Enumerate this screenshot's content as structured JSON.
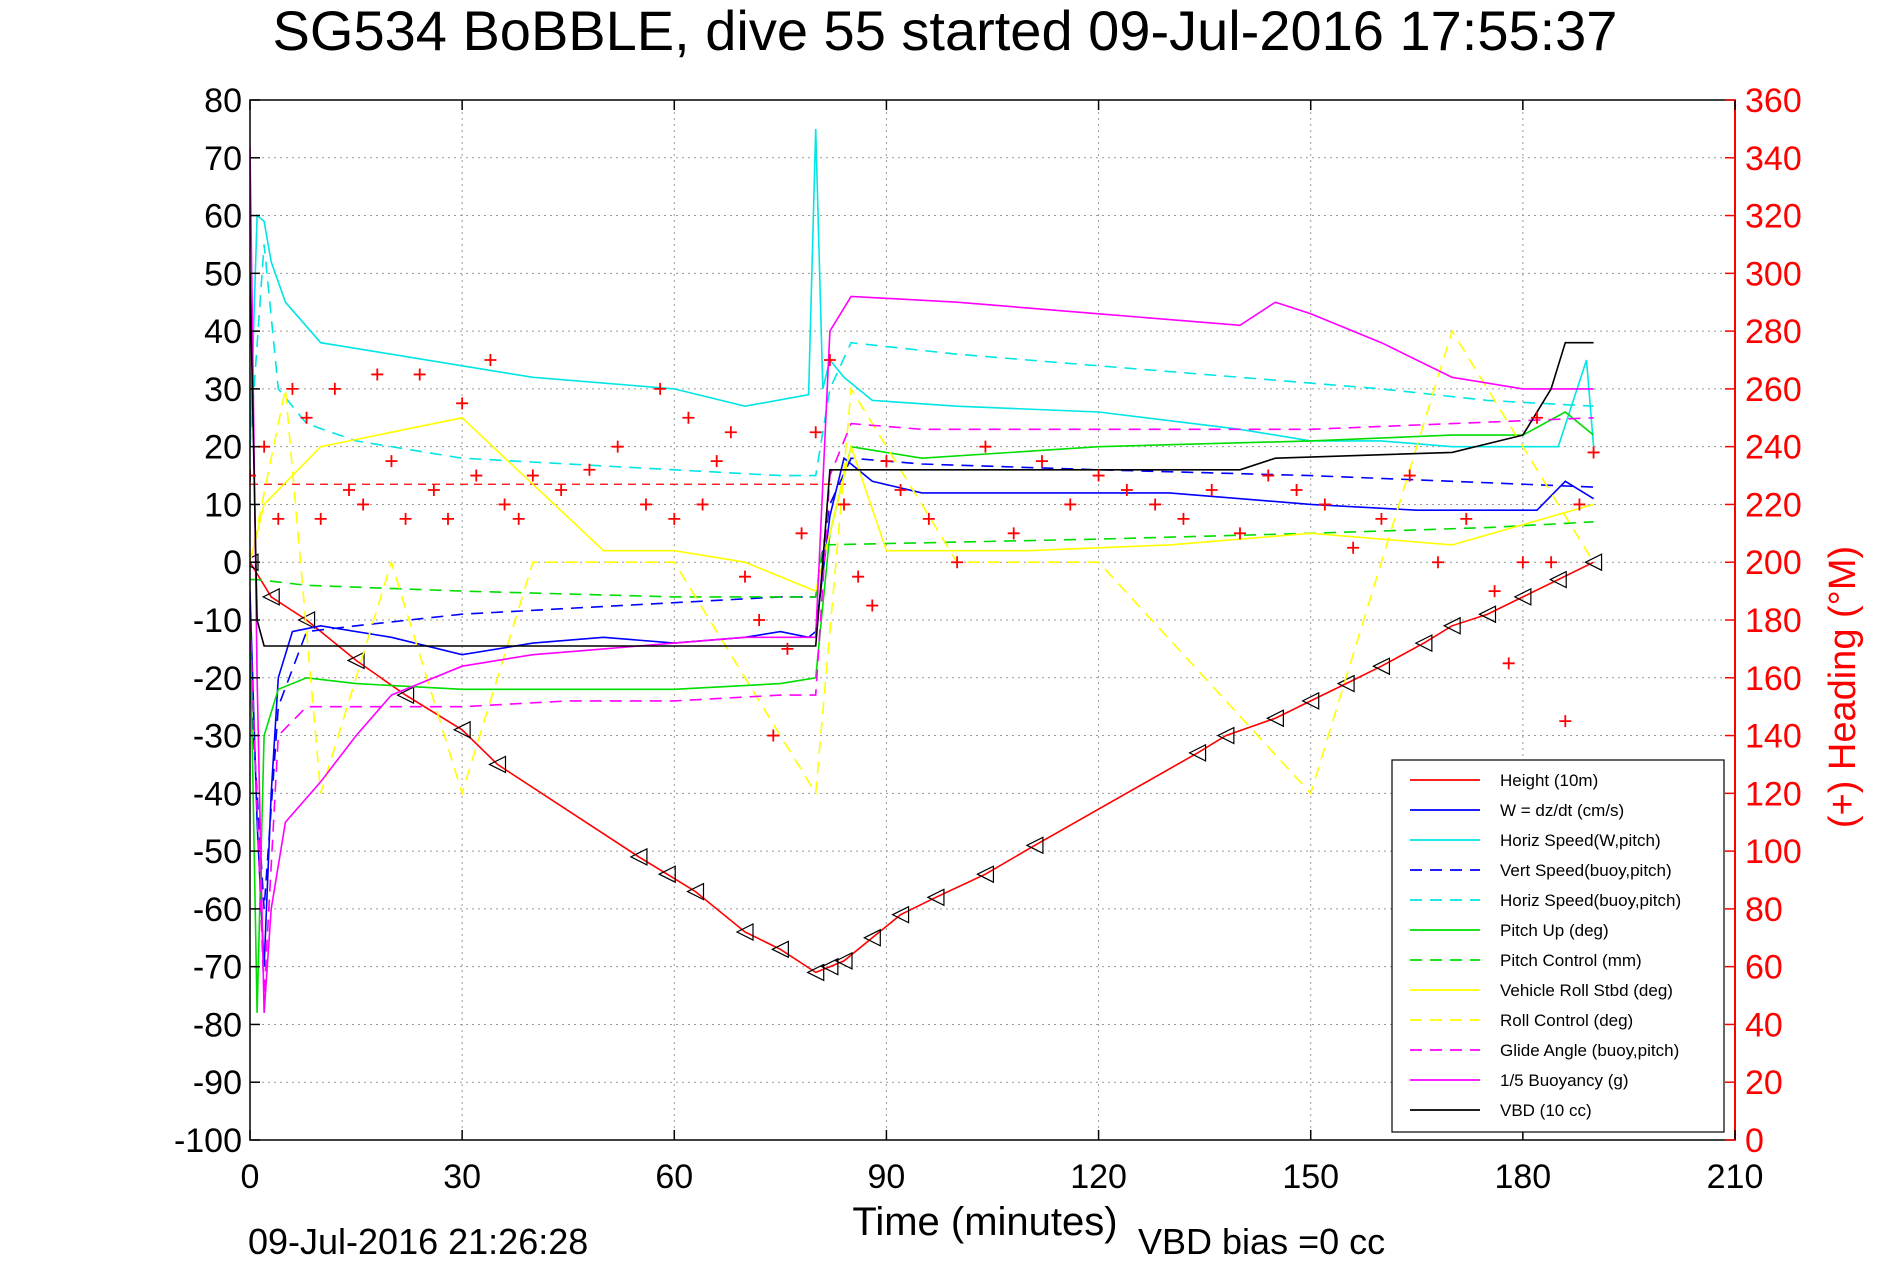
{
  "chart_data": {
    "type": "line",
    "title": "SG534 BoBBLE, dive 55 started 09-Jul-2016 17:55:37",
    "xlabel": "Time (minutes)",
    "ylabel": "",
    "y2label": "(+) Heading (°M)",
    "footer_left": "09-Jul-2016 21:26:28",
    "footer_right": "VBD bias =0 cc",
    "xlim": [
      0,
      210
    ],
    "ylim": [
      -100,
      80
    ],
    "y2lim": [
      0,
      360
    ],
    "xticks": [
      0,
      30,
      60,
      90,
      120,
      150,
      180,
      210
    ],
    "yticks": [
      80,
      70,
      60,
      50,
      40,
      30,
      20,
      10,
      0,
      -10,
      -20,
      -30,
      -40,
      -50,
      -60,
      -70,
      -80,
      -90,
      -100
    ],
    "y2ticks": [
      360,
      340,
      320,
      300,
      280,
      260,
      240,
      220,
      200,
      180,
      160,
      140,
      120,
      100,
      80,
      60,
      40,
      20,
      0
    ],
    "grid": true,
    "legend_position": "bottom-right",
    "series": [
      {
        "name": "Height (10m)",
        "color": "#ff0000",
        "dash": "solid",
        "marker": "triangle",
        "x": [
          0,
          3,
          8,
          15,
          22,
          30,
          35,
          55,
          59,
          63,
          70,
          75,
          80,
          82,
          84,
          88,
          92,
          97,
          104,
          111,
          134,
          138,
          145,
          150,
          155,
          160,
          166,
          170,
          175,
          180,
          185,
          190
        ],
        "y": [
          0,
          -6,
          -10,
          -17,
          -23,
          -29,
          -35,
          -51,
          -54,
          -57,
          -64,
          -67,
          -71,
          -70,
          -69,
          -65,
          -61,
          -58,
          -54,
          -49,
          -33,
          -30,
          -27,
          -24,
          -21,
          -18,
          -14,
          -11,
          -9,
          -6,
          -3,
          0
        ]
      },
      {
        "name": "W = dz/dt (cm/s)",
        "color": "#0000ff",
        "dash": "solid",
        "x": [
          0,
          1,
          2,
          3,
          4,
          6,
          10,
          20,
          30,
          40,
          50,
          60,
          70,
          75,
          79,
          80,
          82,
          84,
          88,
          95,
          110,
          130,
          150,
          165,
          175,
          182,
          186,
          190
        ],
        "y": [
          -5,
          -45,
          -70,
          -40,
          -20,
          -12,
          -11,
          -13,
          -16,
          -14,
          -13,
          -14,
          -13,
          -12,
          -13,
          -12,
          8,
          18,
          14,
          12,
          12,
          12,
          10,
          9,
          9,
          9,
          14,
          11
        ]
      },
      {
        "name": "Horiz Speed(W,pitch)",
        "color": "#00e5e5",
        "dash": "solid",
        "x": [
          0,
          1,
          2,
          3,
          5,
          10,
          20,
          30,
          40,
          50,
          60,
          70,
          79,
          80,
          81,
          82,
          84,
          88,
          100,
          120,
          140,
          150,
          160,
          170,
          180,
          185,
          189,
          190
        ],
        "y": [
          20,
          60,
          59,
          52,
          45,
          38,
          36,
          34,
          32,
          31,
          30,
          27,
          29,
          75,
          30,
          35,
          32,
          28,
          27,
          26,
          23,
          21,
          21,
          20,
          20,
          20,
          35,
          20
        ]
      },
      {
        "name": "Vert Speed(buoy,pitch)",
        "color": "#0000ff",
        "dash": "dashed",
        "x": [
          0,
          2,
          4,
          8,
          15,
          30,
          45,
          60,
          75,
          80,
          82,
          85,
          95,
          120,
          150,
          170,
          190
        ],
        "y": [
          -20,
          -60,
          -25,
          -12,
          -11,
          -9,
          -8,
          -7,
          -6,
          -6,
          10,
          18,
          17,
          16,
          15,
          14,
          13
        ]
      },
      {
        "name": "Horiz Speed(buoy,pitch)",
        "color": "#00e5e5",
        "dash": "dashed",
        "x": [
          0,
          2,
          4,
          8,
          15,
          30,
          45,
          60,
          75,
          80,
          82,
          85,
          100,
          120,
          140,
          160,
          175,
          190
        ],
        "y": [
          20,
          55,
          30,
          24,
          21,
          18,
          17,
          16,
          15,
          15,
          30,
          38,
          36,
          34,
          32,
          30,
          28,
          27
        ]
      },
      {
        "name": "Pitch Up (deg)",
        "color": "#00dd00",
        "dash": "solid",
        "x": [
          0,
          1,
          2,
          4,
          8,
          15,
          30,
          45,
          60,
          75,
          80,
          82,
          85,
          95,
          120,
          150,
          170,
          180,
          186,
          190
        ],
        "y": [
          -10,
          -78,
          -30,
          -22,
          -20,
          -21,
          -22,
          -22,
          -22,
          -21,
          -20,
          5,
          20,
          18,
          20,
          21,
          22,
          22,
          26,
          22
        ]
      },
      {
        "name": "Pitch Control (mm)",
        "color": "#00dd00",
        "dash": "dashed",
        "x": [
          0,
          1,
          8,
          30,
          60,
          80,
          81,
          120,
          150,
          175,
          190
        ],
        "y": [
          -3,
          -3,
          -4,
          -5,
          -6,
          -6,
          3,
          4,
          5,
          6,
          7
        ]
      },
      {
        "name": "Vehicle Roll Stbd (deg)",
        "color": "#ffff00",
        "dash": "solid",
        "x": [
          0,
          2,
          10,
          30,
          50,
          60,
          70,
          80,
          85,
          90,
          110,
          130,
          150,
          170,
          190
        ],
        "y": [
          0,
          10,
          20,
          25,
          2,
          2,
          0,
          -5,
          20,
          2,
          2,
          3,
          5,
          3,
          10
        ]
      },
      {
        "name": "Roll Control (deg)",
        "color": "#ffff00",
        "dash": "dashed",
        "x": [
          0,
          5,
          10,
          20,
          30,
          40,
          60,
          80,
          85,
          100,
          120,
          150,
          170,
          190
        ],
        "y": [
          0,
          30,
          -40,
          0,
          -40,
          0,
          0,
          -40,
          30,
          0,
          0,
          -40,
          40,
          0
        ]
      },
      {
        "name": "Glide Angle (buoy,pitch)",
        "color": "#ff00ff",
        "dash": "dashed",
        "x": [
          0,
          2,
          4,
          8,
          15,
          30,
          45,
          60,
          75,
          80,
          82,
          85,
          95,
          120,
          150,
          170,
          190
        ],
        "y": [
          -10,
          -75,
          -30,
          -25,
          -25,
          -25,
          -24,
          -24,
          -23,
          -23,
          15,
          24,
          23,
          23,
          23,
          24,
          25
        ]
      },
      {
        "name": "1/5 Buoyancy (g)",
        "color": "#ff00ff",
        "dash": "solid",
        "x": [
          0,
          1,
          2,
          3,
          5,
          10,
          15,
          20,
          30,
          40,
          50,
          60,
          70,
          80,
          82,
          85,
          100,
          120,
          140,
          145,
          150,
          160,
          170,
          180,
          185,
          190
        ],
        "y": [
          72,
          -20,
          -78,
          -60,
          -45,
          -38,
          -30,
          -23,
          -18,
          -16,
          -15,
          -14,
          -13,
          -13,
          40,
          46,
          45,
          43,
          41,
          45,
          43,
          38,
          32,
          30,
          30,
          30
        ]
      },
      {
        "name": "VBD (10 cc)",
        "color": "#000000",
        "dash": "solid",
        "x": [
          0,
          1,
          2,
          20,
          40,
          60,
          80,
          81,
          82,
          85,
          100,
          140,
          145,
          170,
          180,
          184,
          186,
          190
        ],
        "y": [
          50,
          -10,
          -14.5,
          -14.5,
          -14.5,
          -14.5,
          -14.5,
          0,
          16,
          16,
          16,
          16,
          18,
          19,
          22,
          30,
          38,
          38
        ]
      }
    ],
    "heading": {
      "name": "(+) Heading (°M)",
      "color": "#ff0000",
      "marker": "+",
      "axis": "right",
      "reference": 227,
      "x": [
        0,
        2,
        4,
        6,
        8,
        10,
        12,
        14,
        16,
        18,
        20,
        22,
        24,
        26,
        28,
        30,
        32,
        34,
        36,
        38,
        40,
        44,
        48,
        52,
        56,
        58,
        60,
        62,
        64,
        66,
        68,
        70,
        72,
        74,
        76,
        78,
        80,
        82,
        84,
        86,
        88,
        90,
        92,
        96,
        100,
        104,
        108,
        112,
        116,
        120,
        124,
        128,
        132,
        136,
        140,
        144,
        148,
        152,
        156,
        160,
        164,
        168,
        172,
        176,
        178,
        180,
        182,
        184,
        186,
        188,
        190
      ],
      "y": [
        230,
        240,
        215,
        260,
        250,
        215,
        260,
        225,
        220,
        265,
        235,
        215,
        265,
        225,
        215,
        255,
        230,
        270,
        220,
        215,
        230,
        225,
        232,
        240,
        220,
        260,
        215,
        250,
        220,
        235,
        245,
        195,
        180,
        140,
        170,
        210,
        245,
        270,
        220,
        195,
        185,
        235,
        225,
        215,
        200,
        240,
        210,
        235,
        220,
        230,
        225,
        220,
        215,
        225,
        210,
        230,
        225,
        220,
        205,
        215,
        230,
        200,
        215,
        190,
        165,
        200,
        250,
        200,
        145,
        220,
        238
      ]
    }
  }
}
